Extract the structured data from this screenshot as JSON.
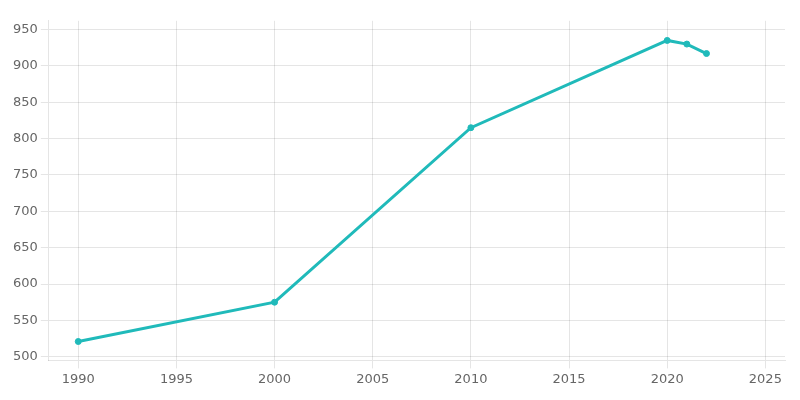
{
  "chart_data": {
    "type": "line",
    "x": [
      1990,
      2000,
      2010,
      2020,
      2021,
      2022
    ],
    "values": [
      521,
      575,
      815,
      935,
      930,
      917
    ],
    "color": "#20BABA",
    "marker": "circle",
    "xlim": [
      1988.5,
      2026
    ],
    "ylim": [
      495,
      962
    ],
    "xticks": [
      1990,
      1995,
      2000,
      2005,
      2010,
      2015,
      2020,
      2025
    ],
    "yticks": [
      500,
      550,
      600,
      650,
      700,
      750,
      800,
      850,
      900,
      950
    ],
    "grid": true
  }
}
